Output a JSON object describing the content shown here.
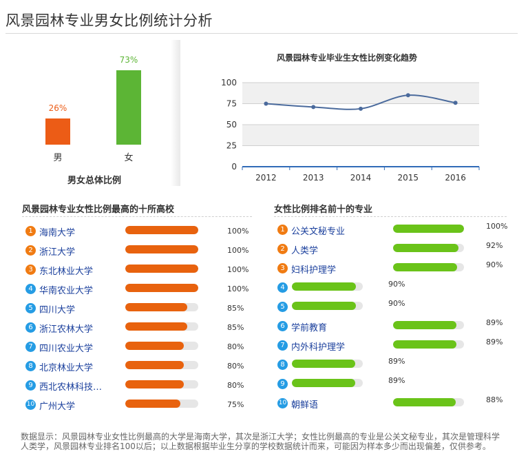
{
  "page_title": "风景园林专业男女比例统计分析",
  "colors": {
    "male": "#ec5c16",
    "female": "#5cb535",
    "orange_bar": "#e8620e",
    "green_bar": "#6ac319",
    "rank_orange": "#f07b12",
    "rank_blue": "#259ce4",
    "line": "#4a6a9c"
  },
  "chart_data": [
    {
      "type": "bar",
      "title": "男女总体比例",
      "categories": [
        "男",
        "女"
      ],
      "values": [
        26,
        73
      ],
      "value_labels": [
        "26%",
        "73%"
      ],
      "ylim": [
        0,
        100
      ]
    },
    {
      "type": "line",
      "title": "风景园林专业毕业生女性比例变化趋势",
      "x": [
        "2012",
        "2013",
        "2014",
        "2015",
        "2016"
      ],
      "series": [
        {
          "values": [
            75,
            71,
            69,
            85,
            76
          ]
        }
      ],
      "ylim": [
        0,
        100
      ],
      "yticks": [
        "0",
        "25",
        "50",
        "75",
        "100"
      ],
      "grid": true
    },
    {
      "type": "bar",
      "title": "风景园林专业女性比例最高的十所高校",
      "categories": [
        "海南大学",
        "浙江大学",
        "东北林业大学",
        "华南农业大学",
        "四川大学",
        "浙江农林大学",
        "四川农业大学",
        "北京林业大学",
        "西北农林科技…",
        "广州大学"
      ],
      "values": [
        100,
        100,
        100,
        100,
        85,
        85,
        80,
        80,
        80,
        75
      ],
      "value_labels": [
        "100%",
        "100%",
        "100%",
        "100%",
        "85%",
        "85%",
        "80%",
        "80%",
        "80%",
        "75%"
      ],
      "ranks": [
        "1",
        "2",
        "3",
        "4",
        "5",
        "6",
        "7",
        "8",
        "9",
        "10"
      ]
    },
    {
      "type": "bar",
      "title": "女性比例排名前十的专业",
      "categories": [
        "公关文秘专业",
        "人类学",
        "妇科护理学",
        "",
        "",
        "学前教育",
        "内外科护理学",
        "",
        "",
        "朝鲜语"
      ],
      "values": [
        100,
        92,
        90,
        90,
        90,
        89,
        89,
        89,
        89,
        88
      ],
      "value_labels": [
        "100%",
        "92%",
        "90%",
        "90%",
        "90%",
        "89%",
        "89%",
        "89%",
        "89%",
        "88%"
      ],
      "ranks": [
        "1",
        "2",
        "3",
        "4",
        "5",
        "6",
        "7",
        "8",
        "9",
        "10"
      ]
    }
  ],
  "footer_note": "数据显示：风景园林专业女性比例最高的大学是海南大学，其次是浙江大学；女性比例最高的专业是公关文秘专业，其次是管理科学人类学，风景园林专业排名100以后；以上数据根据毕业生分享的学校数据统计而来，可能因为样本多少而出现偏差，仅供参考。"
}
